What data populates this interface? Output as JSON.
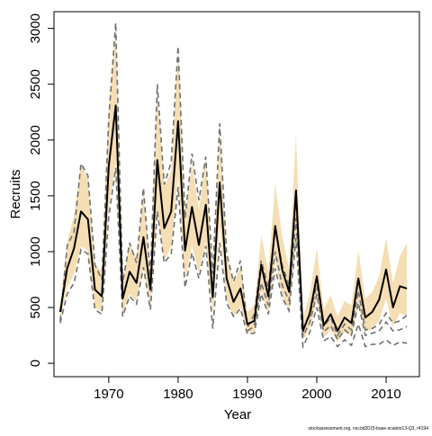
{
  "chart_data": {
    "type": "line",
    "xlabel": "Year",
    "ylabel": "Recruits",
    "xlim": [
      1962.1,
      2014.8
    ],
    "ylim": [
      -120,
      3150
    ],
    "xticks": [
      1970,
      1980,
      1990,
      2000,
      2010
    ],
    "yticks": [
      0,
      500,
      1000,
      1500,
      2000,
      2500,
      3000
    ],
    "grid": false,
    "legend": "none",
    "credit": "stockassessment.org, nscod2015-base-scaleto13-Q3, r4194",
    "colors": {
      "band": "#f5deb3",
      "estimate": "#000000",
      "retro": "#707070"
    },
    "x": [
      1963,
      1964,
      1965,
      1966,
      1967,
      1968,
      1969,
      1970,
      1971,
      1972,
      1973,
      1974,
      1975,
      1976,
      1977,
      1978,
      1979,
      1980,
      1981,
      1982,
      1983,
      1984,
      1985,
      1986,
      1987,
      1988,
      1989,
      1990,
      1991,
      1992,
      1993,
      1994,
      1995,
      1996,
      1997,
      1998,
      1999,
      2000,
      2001,
      2002,
      2003,
      2004,
      2005,
      2006,
      2007,
      2008,
      2009,
      2010,
      2011,
      2012,
      2013
    ],
    "series": [
      {
        "role": "estimate",
        "values": [
          460,
          850,
          1030,
          1360,
          1290,
          660,
          600,
          1770,
          2310,
          580,
          820,
          720,
          1130,
          660,
          1820,
          1210,
          1360,
          2170,
          1010,
          1400,
          1060,
          1420,
          590,
          1620,
          760,
          550,
          670,
          350,
          380,
          880,
          600,
          1230,
          840,
          640,
          1550,
          290,
          450,
          780,
          340,
          440,
          290,
          410,
          360,
          760,
          410,
          460,
          570,
          840,
          500,
          690,
          670
        ]
      },
      {
        "role": "band-upper",
        "values": [
          530,
          1100,
          1320,
          1780,
          1650,
          890,
          820,
          2280,
          3000,
          760,
          1060,
          950,
          1520,
          840,
          2450,
          1580,
          1720,
          2800,
          1300,
          1800,
          1370,
          1850,
          740,
          2120,
          960,
          710,
          860,
          460,
          520,
          1150,
          820,
          1610,
          1140,
          850,
          2050,
          410,
          620,
          1030,
          480,
          610,
          420,
          560,
          520,
          1010,
          580,
          640,
          780,
          1120,
          720,
          960,
          1080
        ]
      },
      {
        "role": "band-lower",
        "values": [
          400,
          680,
          800,
          1050,
          1000,
          500,
          460,
          1400,
          1800,
          440,
          620,
          550,
          870,
          500,
          1380,
          920,
          1040,
          1680,
          750,
          1050,
          810,
          1080,
          440,
          1230,
          580,
          410,
          510,
          270,
          280,
          650,
          440,
          920,
          610,
          460,
          1150,
          200,
          320,
          560,
          230,
          300,
          190,
          280,
          240,
          520,
          280,
          310,
          380,
          580,
          330,
          450,
          420
        ]
      },
      {
        "role": "retro-upper",
        "values": [
          380,
          1050,
          1180,
          1790,
          1680,
          880,
          750,
          2200,
          3050,
          720,
          1080,
          900,
          1570,
          780,
          2500,
          1600,
          1800,
          2840,
          1300,
          1880,
          1460,
          1850,
          800,
          2150,
          980,
          730,
          920,
          320,
          440,
          920,
          680,
          1200,
          880,
          700,
          1470,
          300,
          430,
          700,
          330,
          410,
          250,
          350,
          300,
          650,
          300,
          310,
          350,
          450,
          360,
          380,
          430
        ]
      },
      {
        "role": "retro-mid",
        "values": [
          null,
          null,
          null,
          null,
          null,
          null,
          null,
          null,
          null,
          null,
          null,
          null,
          null,
          null,
          null,
          null,
          null,
          null,
          null,
          null,
          null,
          null,
          null,
          null,
          null,
          null,
          null,
          290,
          330,
          720,
          520,
          1000,
          700,
          560,
          1300,
          240,
          370,
          620,
          280,
          340,
          210,
          300,
          250,
          540,
          250,
          270,
          290,
          370,
          290,
          300,
          330
        ]
      },
      {
        "role": "retro-lower",
        "values": [
          360,
          620,
          720,
          1020,
          980,
          480,
          440,
          1320,
          1750,
          420,
          600,
          530,
          860,
          480,
          1360,
          900,
          980,
          1580,
          680,
          990,
          760,
          1050,
          310,
          1080,
          540,
          420,
          490,
          260,
          270,
          620,
          440,
          850,
          590,
          470,
          1120,
          150,
          280,
          500,
          200,
          240,
          150,
          210,
          160,
          350,
          150,
          170,
          170,
          210,
          160,
          190,
          180
        ]
      }
    ]
  }
}
